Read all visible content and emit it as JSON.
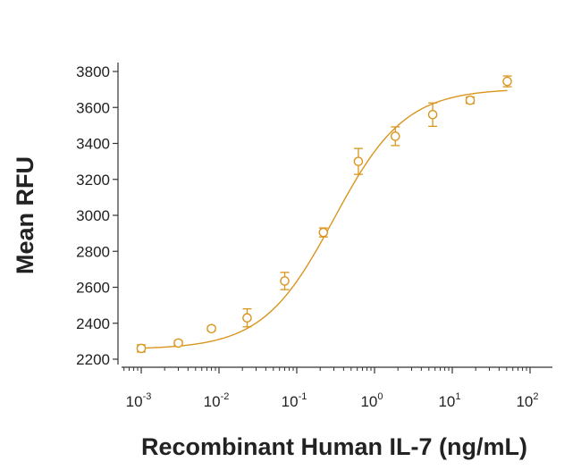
{
  "chart_data": {
    "type": "scatter",
    "title": "",
    "xlabel": "Recombinant Human IL-7 (ng/mL)",
    "ylabel": "Mean RFU",
    "x_scale": "log10",
    "xlim": [
      0.0005,
      200
    ],
    "ylim": [
      2200,
      3850
    ],
    "x_ticks": [
      {
        "value": 0.001,
        "base": "10",
        "exp": "-3"
      },
      {
        "value": 0.01,
        "base": "10",
        "exp": "-2"
      },
      {
        "value": 0.1,
        "base": "10",
        "exp": "-1"
      },
      {
        "value": 1,
        "base": "10",
        "exp": "0"
      },
      {
        "value": 10,
        "base": "10",
        "exp": "1"
      },
      {
        "value": 100,
        "base": "10",
        "exp": "2"
      }
    ],
    "y_ticks": [
      "2200",
      "2400",
      "2600",
      "2800",
      "3000",
      "3200",
      "3400",
      "3600",
      "3800"
    ],
    "grid": false,
    "legend": "none",
    "color": "#D9951E",
    "series": [
      {
        "x": [
          0.001,
          0.003,
          0.008,
          0.023,
          0.07,
          0.22,
          0.62,
          1.85,
          5.6,
          17,
          51
        ],
        "y": [
          2260,
          2290,
          2370,
          2430,
          2635,
          2905,
          3300,
          3440,
          3560,
          3640,
          3745
        ],
        "error": [
          20,
          12,
          12,
          50,
          48,
          25,
          72,
          52,
          65,
          18,
          30
        ],
        "fit": {
          "model": "4PL",
          "bottom": 2255,
          "top": 3705,
          "ec50": 0.3,
          "hill": 0.95
        }
      }
    ]
  }
}
